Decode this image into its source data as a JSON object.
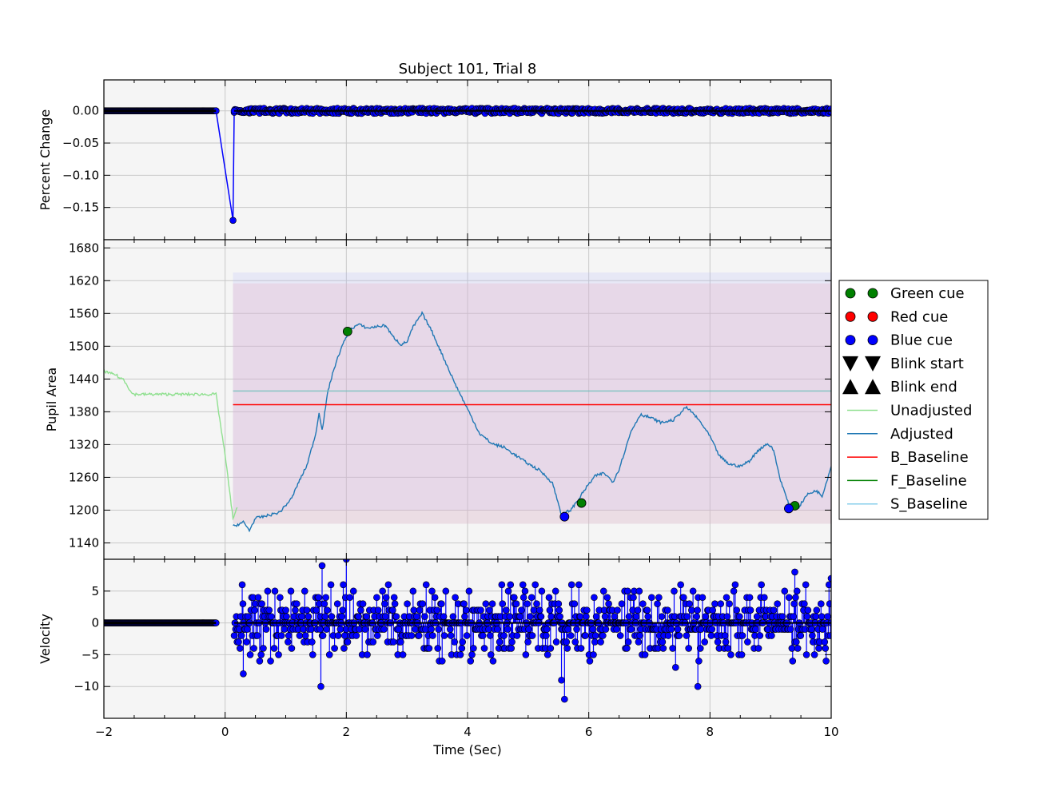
{
  "chart_data": {
    "type": "line",
    "title": "Subject 101, Trial 8",
    "xlabel": "Time (Sec)",
    "xlim": [
      -2,
      10
    ],
    "xticks": [
      -2,
      0,
      2,
      4,
      6,
      8,
      10
    ],
    "panels": [
      {
        "name": "percent-change",
        "ylabel": "Percent Change",
        "ylim": [
          -0.2,
          0.048
        ],
        "yticks": [
          0.0,
          -0.05,
          -0.1,
          -0.15
        ],
        "ytick_labels": [
          "0.00",
          "−0.05",
          "−0.10",
          "−0.15"
        ],
        "grid": true,
        "series": [
          {
            "color": "#0000ff",
            "marker": "circle",
            "segments": [
              {
                "x_start": -2.0,
                "x_end": -0.15,
                "y": 0.0,
                "jitter": 0.0
              },
              {
                "x_start": 0.15,
                "x_end": 10.0,
                "y": 0.0,
                "jitter": 0.004
              }
            ],
            "points": [
              [
                -0.15,
                0.0
              ],
              [
                0.13,
                -0.17
              ],
              [
                0.15,
                0.0
              ]
            ]
          }
        ]
      },
      {
        "name": "pupil-area",
        "ylabel": "Pupil Area",
        "ylim": [
          1110,
          1695
        ],
        "yticks": [
          1140,
          1200,
          1260,
          1320,
          1380,
          1440,
          1500,
          1560,
          1620,
          1680
        ],
        "grid": true,
        "bands": [
          {
            "x": [
              0.13,
              10
            ],
            "y": [
              1175,
              1635
            ],
            "color": "#aab4ff",
            "opacity": 0.18
          },
          {
            "x": [
              0.13,
              10
            ],
            "y": [
              1175,
              1200
            ],
            "color": "#ffb4a0",
            "opacity": 0.2
          },
          {
            "x": [
              0.13,
              10
            ],
            "y": [
              1200,
              1615
            ],
            "color": "#e8b4c8",
            "opacity": 0.3
          }
        ],
        "series": [
          {
            "name": "Unadjusted",
            "color": "#90e090",
            "points": [
              [
                -2.0,
                1455
              ],
              [
                -1.9,
                1450
              ],
              [
                -1.8,
                1448
              ],
              [
                -1.75,
                1442
              ],
              [
                -1.68,
                1440
              ],
              [
                -1.62,
                1430
              ],
              [
                -1.55,
                1415
              ],
              [
                -1.5,
                1412
              ],
              [
                -1.2,
                1412
              ],
              [
                -0.8,
                1412
              ],
              [
                -0.5,
                1412
              ],
              [
                -0.15,
                1412
              ],
              [
                0.0,
                1300
              ],
              [
                0.13,
                1185
              ],
              [
                0.2,
                1205
              ]
            ]
          },
          {
            "name": "Adjusted",
            "color": "#1f77b4",
            "points": [
              [
                0.13,
                1170
              ],
              [
                0.3,
                1178
              ],
              [
                0.4,
                1163
              ],
              [
                0.5,
                1185
              ],
              [
                0.7,
                1190
              ],
              [
                0.9,
                1196
              ],
              [
                1.1,
                1222
              ],
              [
                1.2,
                1248
              ],
              [
                1.35,
                1282
              ],
              [
                1.5,
                1342
              ],
              [
                1.55,
                1380
              ],
              [
                1.6,
                1346
              ],
              [
                1.7,
                1420
              ],
              [
                1.8,
                1460
              ],
              [
                1.9,
                1492
              ],
              [
                2.05,
                1530
              ],
              [
                2.2,
                1540
              ],
              [
                2.35,
                1533
              ],
              [
                2.5,
                1536
              ],
              [
                2.65,
                1538
              ],
              [
                2.75,
                1520
              ],
              [
                2.9,
                1503
              ],
              [
                3.0,
                1508
              ],
              [
                3.1,
                1535
              ],
              [
                3.25,
                1560
              ],
              [
                3.4,
                1530
              ],
              [
                3.6,
                1480
              ],
              [
                3.8,
                1430
              ],
              [
                4.0,
                1385
              ],
              [
                4.2,
                1340
              ],
              [
                4.4,
                1322
              ],
              [
                4.6,
                1315
              ],
              [
                4.8,
                1300
              ],
              [
                5.0,
                1285
              ],
              [
                5.2,
                1272
              ],
              [
                5.4,
                1250
              ],
              [
                5.55,
                1192
              ],
              [
                5.7,
                1200
              ],
              [
                5.8,
                1215
              ],
              [
                5.95,
                1240
              ],
              [
                6.1,
                1262
              ],
              [
                6.25,
                1268
              ],
              [
                6.4,
                1252
              ],
              [
                6.5,
                1275
              ],
              [
                6.7,
                1345
              ],
              [
                6.85,
                1375
              ],
              [
                7.0,
                1370
              ],
              [
                7.2,
                1360
              ],
              [
                7.4,
                1365
              ],
              [
                7.6,
                1388
              ],
              [
                7.7,
                1380
              ],
              [
                7.85,
                1360
              ],
              [
                8.0,
                1335
              ],
              [
                8.15,
                1300
              ],
              [
                8.3,
                1285
              ],
              [
                8.5,
                1280
              ],
              [
                8.65,
                1290
              ],
              [
                8.8,
                1310
              ],
              [
                8.95,
                1322
              ],
              [
                9.05,
                1310
              ],
              [
                9.15,
                1260
              ],
              [
                9.3,
                1210
              ],
              [
                9.45,
                1203
              ],
              [
                9.6,
                1228
              ],
              [
                9.75,
                1236
              ],
              [
                9.85,
                1226
              ],
              [
                10.0,
                1280
              ]
            ]
          },
          {
            "name": "B_Baseline",
            "color": "#ff0000",
            "y": 1393
          },
          {
            "name": "F_Baseline",
            "color": "#008000",
            "y": 1418,
            "opacity": 0.35
          },
          {
            "name": "S_Baseline",
            "color": "#87ceeb",
            "y": 1418,
            "opacity": 0.6
          }
        ],
        "markers": [
          {
            "series": "Green cue",
            "color": "#008000",
            "points": [
              [
                2.02,
                1527
              ],
              [
                5.88,
                1213
              ],
              [
                9.4,
                1208
              ]
            ]
          },
          {
            "series": "Blue cue",
            "color": "#0000ff",
            "points": [
              [
                5.6,
                1188
              ],
              [
                9.3,
                1203
              ]
            ]
          }
        ]
      },
      {
        "name": "velocity",
        "ylabel": "Velocity",
        "ylim": [
          -15,
          10
        ],
        "yticks": [
          5,
          0,
          -5,
          -10
        ],
        "ytick_labels": [
          "5",
          "0",
          "−5",
          "−10"
        ],
        "grid": true,
        "series": [
          {
            "color": "#0000ff",
            "marker": "circle",
            "segments": [
              {
                "x_start": -2.0,
                "x_end": -0.15,
                "y": 0.0,
                "jitter": 0.0
              },
              {
                "x_start": 0.15,
                "x_end": 10.0,
                "y": 0.0,
                "jitter": 6.0
              }
            ],
            "points": [
              [
                1.6,
                9
              ],
              [
                2.0,
                10
              ],
              [
                5.6,
                -12
              ],
              [
                1.58,
                -10
              ],
              [
                5.55,
                -9
              ],
              [
                7.8,
                -10
              ],
              [
                0.3,
                -8
              ],
              [
                9.4,
                8
              ],
              [
                10,
                7
              ]
            ]
          }
        ]
      }
    ],
    "legend": {
      "placement": "right",
      "entries": [
        {
          "label": "Green cue",
          "kind": "circle",
          "color": "#008000"
        },
        {
          "label": "Red cue",
          "kind": "circle",
          "color": "#ff0000"
        },
        {
          "label": "Blue cue",
          "kind": "circle",
          "color": "#0000ff"
        },
        {
          "label": "Blink start",
          "kind": "triangle-down",
          "color": "#000000"
        },
        {
          "label": "Blink end",
          "kind": "triangle-up",
          "color": "#000000"
        },
        {
          "label": "Unadjusted",
          "kind": "line",
          "color": "#90e090"
        },
        {
          "label": "Adjusted",
          "kind": "line",
          "color": "#1f77b4"
        },
        {
          "label": "B_Baseline",
          "kind": "line",
          "color": "#ff0000"
        },
        {
          "label": "F_Baseline",
          "kind": "line",
          "color": "#008000"
        },
        {
          "label": "S_Baseline",
          "kind": "line",
          "color": "#87ceeb"
        }
      ]
    }
  }
}
